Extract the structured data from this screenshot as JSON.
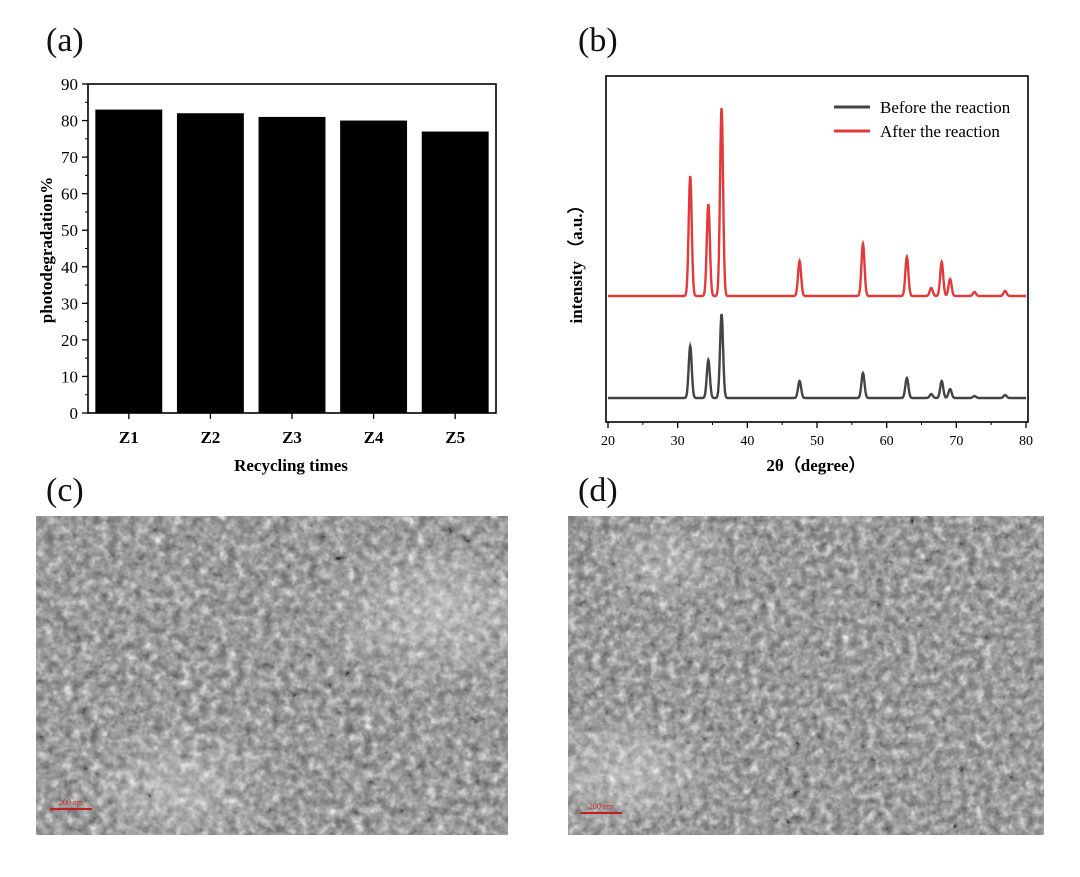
{
  "panels": {
    "a": "(a)",
    "b": "(b)",
    "c": "(c)",
    "d": "(d)"
  },
  "chart_data": [
    {
      "type": "bar",
      "categories": [
        "Z1",
        "Z2",
        "Z3",
        "Z4",
        "Z5"
      ],
      "values": [
        83,
        82,
        81,
        80,
        77
      ],
      "xlabel": "Recycling times",
      "ylabel": "photodegradation%",
      "ylim": [
        0,
        90
      ],
      "yticks": [
        0,
        10,
        20,
        30,
        40,
        50,
        60,
        70,
        80,
        90
      ],
      "bar_color": "#000000",
      "grid": false
    },
    {
      "type": "line",
      "xlabel": "2θ（degree）",
      "ylabel": "intensity （a.u.）",
      "xlim": [
        20,
        80
      ],
      "xticks": [
        20,
        30,
        40,
        50,
        60,
        70,
        80
      ],
      "y_tick_labels": false,
      "legend_position": "top-right",
      "peaks_2theta": [
        31.8,
        34.4,
        36.3,
        47.5,
        56.6,
        62.9,
        66.4,
        67.9,
        69.1,
        72.6,
        77.0
      ],
      "series": [
        {
          "name": "Before the reaction",
          "color": "#444444",
          "peak_heights": [
            52,
            38,
            84,
            17,
            25,
            20,
            4,
            17,
            9,
            2,
            3
          ]
        },
        {
          "name": "After the reaction",
          "color": "#e03a3a",
          "peak_heights": [
            120,
            92,
            188,
            35,
            52,
            39,
            8,
            34,
            17,
            4,
            5
          ]
        }
      ],
      "grid": false
    }
  ],
  "images": {
    "c": {
      "scale_label": "200 nm"
    },
    "d": {
      "scale_label": "200 nm"
    }
  }
}
